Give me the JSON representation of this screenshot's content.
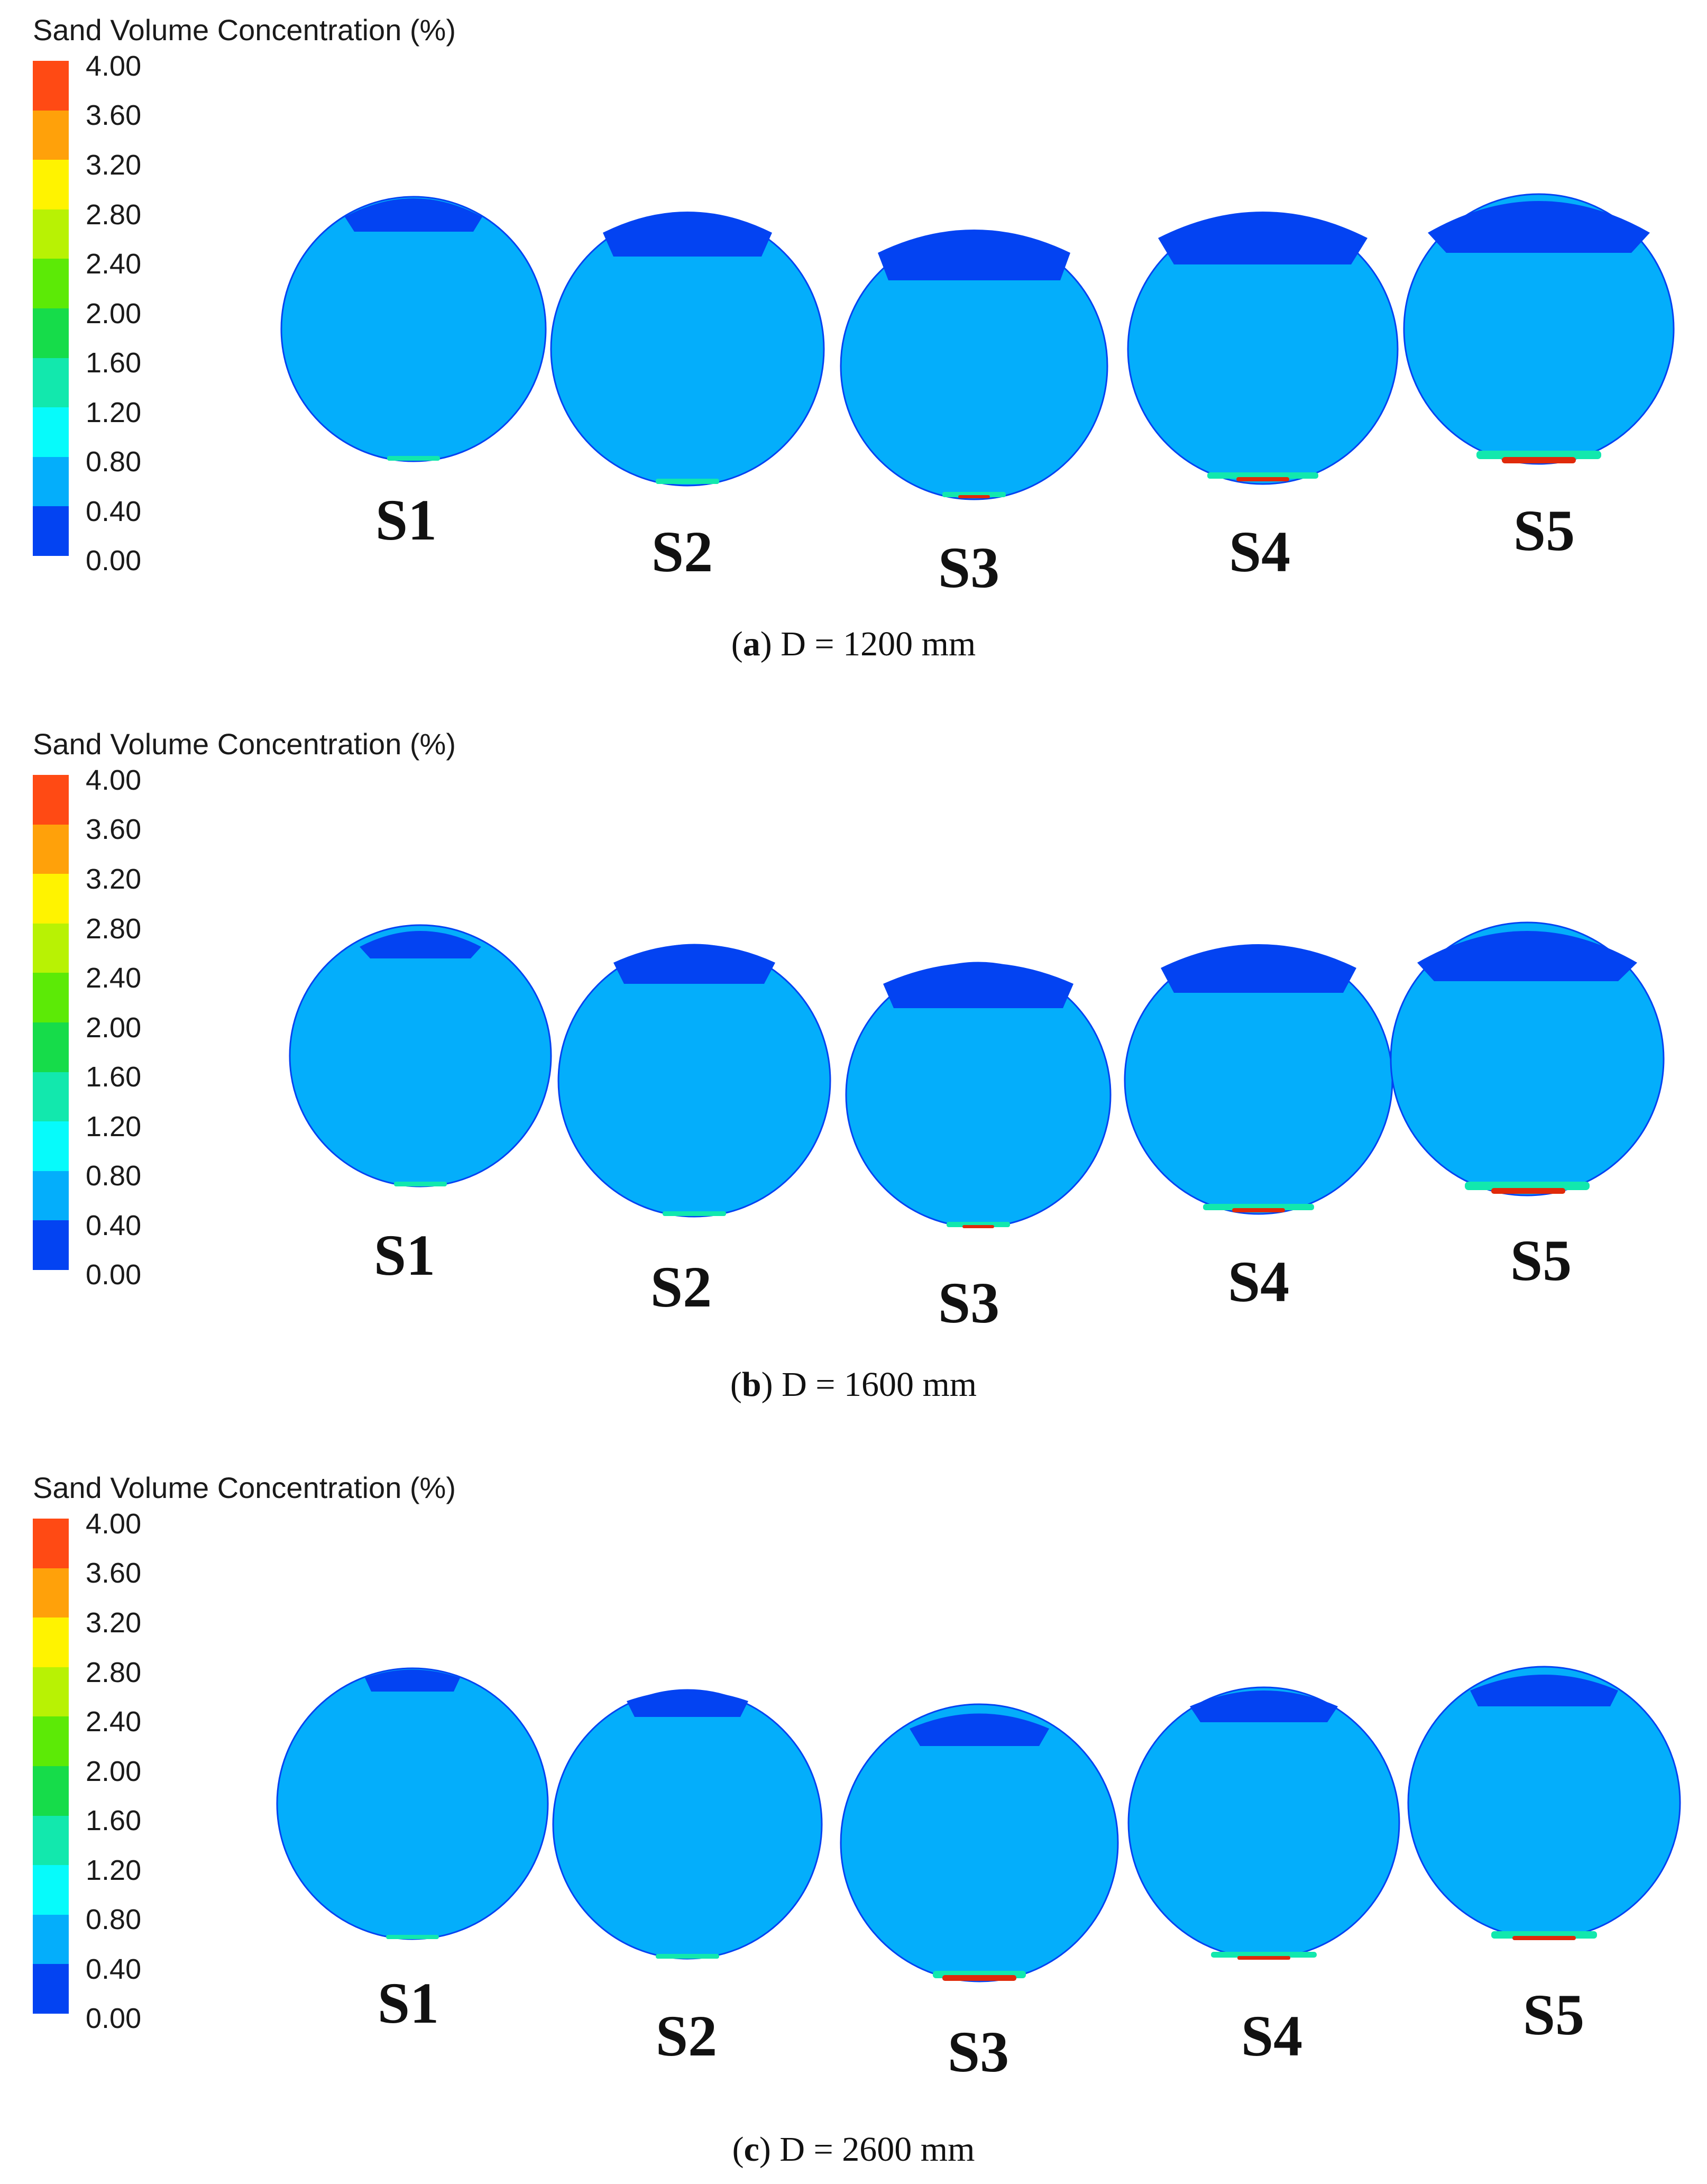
{
  "colorbar": {
    "title": "Sand Volume Concentration (%)",
    "ticks": [
      "4.00",
      "3.60",
      "3.20",
      "2.80",
      "2.40",
      "2.00",
      "1.60",
      "1.20",
      "0.80",
      "0.40",
      "0.00"
    ],
    "colors": [
      "#ff4a14",
      "#ffa10a",
      "#fff300",
      "#b8f204",
      "#5cea06",
      "#16dc4a",
      "#12e8ad",
      "#06fbfb",
      "#04aefb",
      "#0343f2"
    ]
  },
  "fill_colors": {
    "body": "#04aefb",
    "cap": "#0343f2",
    "sediment_low": "#12e8ad",
    "sediment_high": "#e02a0a"
  },
  "panels": [
    {
      "letter": "a",
      "caption": "D = 1200 mm",
      "sections": [
        {
          "label": "S1"
        },
        {
          "label": "S2"
        },
        {
          "label": "S3"
        },
        {
          "label": "S4"
        },
        {
          "label": "S5"
        }
      ]
    },
    {
      "letter": "b",
      "caption": "D = 1600 mm",
      "sections": [
        {
          "label": "S1"
        },
        {
          "label": "S2"
        },
        {
          "label": "S3"
        },
        {
          "label": "S4"
        },
        {
          "label": "S5"
        }
      ]
    },
    {
      "letter": "c",
      "caption": "D = 2600 mm",
      "sections": [
        {
          "label": "S1"
        },
        {
          "label": "S2"
        },
        {
          "label": "S3"
        },
        {
          "label": "S4"
        },
        {
          "label": "S5"
        }
      ]
    }
  ]
}
